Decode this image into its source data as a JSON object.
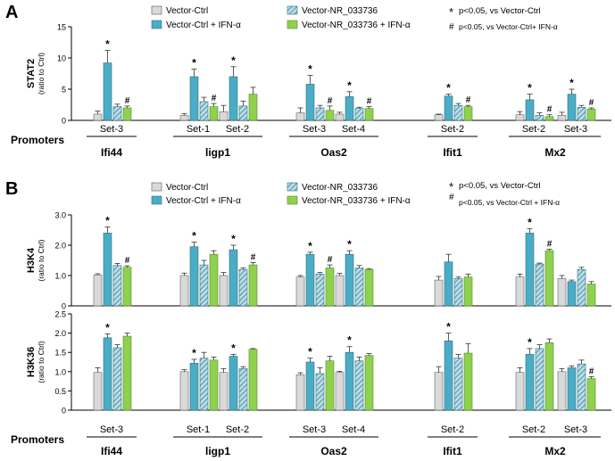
{
  "colors": {
    "vector_ctrl": "#d9d9d9",
    "vector_ctrl_ifn": "#4bacc6",
    "vector_nr": "#b7dee8",
    "vector_nr_ifn": "#8fd14f",
    "hatch": "#2e6f86",
    "error": "#333333"
  },
  "legend": {
    "vector_ctrl": "Vector-Ctrl",
    "vector_ctrl_ifn": "Vector-Ctrl + IFN-α",
    "vector_nr": "Vector-NR_033736",
    "vector_nr_ifn": "Vector-NR_033736 + IFN-α",
    "sig_star_symbol": "*",
    "sig_star_text": "p<0.05, vs Vector-Ctrl",
    "sig_hash_symbol": "#",
    "sig_hash_text": "p<0.05, vs Vector-Ctrl+ IFN-α",
    "sig_hash_text_b": "p<0.05, vs Vector-Ctrl + IFN-α"
  },
  "promoters_label": "Promoters",
  "chart_data": [
    {
      "panel": "A",
      "type": "bar",
      "ylabel": "STAT2",
      "ylabel_sub": "(ratio to Ctrl)",
      "ylim": [
        0,
        15
      ],
      "yticks": [
        "0",
        "5",
        "10",
        "15"
      ],
      "series": [
        "Vector-Ctrl",
        "Vector-Ctrl + IFN-α",
        "Vector-NR_033736",
        "Vector-NR_033736 + IFN-α"
      ],
      "genes": [
        {
          "name": "Ifi44",
          "sets": [
            {
              "label": "Set-3",
              "values": [
                1.0,
                9.2,
                2.2,
                2.0
              ],
              "errors": [
                0.5,
                2.0,
                0.4,
                0.3
              ],
              "marks": [
                "",
                "*",
                "",
                "#"
              ]
            }
          ]
        },
        {
          "name": "ligp1",
          "sets": [
            {
              "label": "Set-1",
              "values": [
                0.8,
                7.0,
                3.0,
                2.2
              ],
              "errors": [
                0.3,
                1.2,
                0.7,
                0.5
              ],
              "marks": [
                "",
                "*",
                "",
                "#"
              ]
            },
            {
              "label": "Set-2",
              "values": [
                1.4,
                7.0,
                2.3,
                4.2
              ],
              "errors": [
                1.0,
                1.6,
                0.8,
                1.1
              ],
              "marks": [
                "",
                "*",
                "",
                ""
              ]
            }
          ]
        },
        {
          "name": "Oas2",
          "sets": [
            {
              "label": "Set-3",
              "values": [
                1.2,
                5.8,
                2.0,
                1.6
              ],
              "errors": [
                0.8,
                1.4,
                0.4,
                0.7
              ],
              "marks": [
                "",
                "*",
                "",
                "#"
              ]
            },
            {
              "label": "Set-4",
              "values": [
                1.0,
                3.8,
                1.9,
                1.9
              ],
              "errors": [
                0.3,
                0.8,
                0.2,
                0.3
              ],
              "marks": [
                "",
                "*",
                "",
                "#"
              ]
            }
          ]
        },
        {
          "name": "Ifit1",
          "sets": [
            {
              "label": "Set-2",
              "values": [
                0.9,
                3.9,
                2.4,
                2.2
              ],
              "errors": [
                0.1,
                0.3,
                0.3,
                0.2
              ],
              "marks": [
                "",
                "*",
                "",
                "#"
              ]
            }
          ]
        },
        {
          "name": "Mx2",
          "sets": [
            {
              "label": "Set-2",
              "values": [
                0.9,
                3.3,
                0.8,
                0.6
              ],
              "errors": [
                0.5,
                0.9,
                0.4,
                0.3
              ],
              "marks": [
                "",
                "*",
                "",
                "#"
              ]
            },
            {
              "label": "Set-3",
              "values": [
                0.8,
                4.2,
                2.1,
                1.8
              ],
              "errors": [
                0.5,
                0.8,
                0.3,
                0.2
              ],
              "marks": [
                "",
                "*",
                "",
                "#"
              ]
            }
          ]
        }
      ]
    },
    {
      "panel": "B-top",
      "type": "bar",
      "ylabel": "H3K4",
      "ylabel_sub": "(ratio to Ctrl)",
      "ylim": [
        0,
        3
      ],
      "yticks": [
        "0",
        "1.0",
        "2.0",
        "3.0"
      ],
      "series": [
        "Vector-Ctrl",
        "Vector-Ctrl + IFN-α",
        "Vector-NR_033736",
        "Vector-NR_033736 + IFN-α"
      ],
      "genes": [
        {
          "name": "Ifi44",
          "sets": [
            {
              "label": "Set-3",
              "values": [
                1.02,
                2.4,
                1.33,
                1.27
              ],
              "errors": [
                0.04,
                0.2,
                0.07,
                0.05
              ],
              "marks": [
                "",
                "*",
                "",
                "#"
              ]
            }
          ]
        },
        {
          "name": "ligp1",
          "sets": [
            {
              "label": "Set-1",
              "values": [
                1.0,
                1.95,
                1.35,
                1.7
              ],
              "errors": [
                0.08,
                0.15,
                0.15,
                0.12
              ],
              "marks": [
                "",
                "*",
                "",
                ""
              ]
            },
            {
              "label": "Set-2",
              "values": [
                1.0,
                1.85,
                1.2,
                1.35
              ],
              "errors": [
                0.1,
                0.15,
                0.05,
                0.08
              ],
              "marks": [
                "",
                "*",
                "",
                "#"
              ]
            }
          ]
        },
        {
          "name": "Oas2",
          "sets": [
            {
              "label": "Set-3",
              "values": [
                0.95,
                1.7,
                1.05,
                1.25
              ],
              "errors": [
                0.05,
                0.07,
                0.05,
                0.1
              ],
              "marks": [
                "",
                "*",
                "",
                "#"
              ]
            },
            {
              "label": "Set-4",
              "values": [
                1.0,
                1.7,
                1.25,
                1.2
              ],
              "errors": [
                0.07,
                0.12,
                0.08,
                0.03
              ],
              "marks": [
                "",
                "*",
                "",
                ""
              ]
            }
          ]
        },
        {
          "name": "Ifit1",
          "sets": [
            {
              "label": "Set-2",
              "values": [
                0.85,
                1.45,
                0.9,
                0.95
              ],
              "errors": [
                0.12,
                0.25,
                0.05,
                0.1
              ],
              "marks": [
                "",
                "",
                "",
                ""
              ]
            }
          ]
        },
        {
          "name": "Mx2",
          "sets": [
            {
              "label": "Set-2",
              "values": [
                0.95,
                2.4,
                1.38,
                1.82
              ],
              "errors": [
                0.1,
                0.15,
                0.03,
                0.05
              ],
              "marks": [
                "",
                "*",
                "",
                "#"
              ]
            },
            {
              "label": "Set-3",
              "values": [
                0.9,
                0.8,
                1.2,
                0.72
              ],
              "errors": [
                0.1,
                0.05,
                0.07,
                0.08
              ],
              "marks": [
                "",
                "",
                "",
                ""
              ]
            }
          ]
        }
      ]
    },
    {
      "panel": "B-bottom",
      "type": "bar",
      "ylabel": "H3K36",
      "ylabel_sub": "(ratio to Ctrl)",
      "ylim": [
        0,
        2.5
      ],
      "yticks": [
        "0",
        "0.5",
        "1.0",
        "1.5",
        "2.0",
        "2.5"
      ],
      "series": [
        "Vector-Ctrl",
        "Vector-Ctrl + IFN-α",
        "Vector-NR_033736",
        "Vector-NR_033736 + IFN-α"
      ],
      "genes": [
        {
          "name": "Ifi44",
          "sets": [
            {
              "label": "Set-3",
              "values": [
                0.98,
                1.88,
                1.62,
                1.92
              ],
              "errors": [
                0.12,
                0.1,
                0.08,
                0.08
              ],
              "marks": [
                "",
                "*",
                "",
                ""
              ]
            }
          ]
        },
        {
          "name": "ligp1",
          "sets": [
            {
              "label": "Set-1",
              "values": [
                1.0,
                1.22,
                1.35,
                1.3
              ],
              "errors": [
                0.05,
                0.1,
                0.15,
                0.08
              ],
              "marks": [
                "",
                "*",
                "",
                ""
              ]
            },
            {
              "label": "Set-2",
              "values": [
                0.98,
                1.4,
                1.08,
                1.58
              ],
              "errors": [
                0.1,
                0.05,
                0.05,
                0.02
              ],
              "marks": [
                "",
                "*",
                "",
                ""
              ]
            }
          ]
        },
        {
          "name": "Oas2",
          "sets": [
            {
              "label": "Set-3",
              "values": [
                0.92,
                1.25,
                0.95,
                1.28
              ],
              "errors": [
                0.05,
                0.1,
                0.15,
                0.12
              ],
              "marks": [
                "",
                "*",
                "",
                ""
              ]
            },
            {
              "label": "Set-4",
              "values": [
                0.98,
                1.5,
                1.28,
                1.42
              ],
              "errors": [
                0.03,
                0.15,
                0.1,
                0.05
              ],
              "marks": [
                "",
                "*",
                "",
                ""
              ]
            }
          ]
        },
        {
          "name": "Ifit1",
          "sets": [
            {
              "label": "Set-2",
              "values": [
                0.98,
                1.8,
                1.35,
                1.48
              ],
              "errors": [
                0.15,
                0.2,
                0.1,
                0.25
              ],
              "marks": [
                "",
                "*",
                "",
                ""
              ]
            }
          ]
        },
        {
          "name": "Mx2",
          "sets": [
            {
              "label": "Set-2",
              "values": [
                0.98,
                1.45,
                1.6,
                1.75
              ],
              "errors": [
                0.12,
                0.15,
                0.1,
                0.1
              ],
              "marks": [
                "",
                "*",
                "",
                ""
              ]
            },
            {
              "label": "Set-3",
              "values": [
                1.0,
                1.1,
                1.2,
                0.82
              ],
              "errors": [
                0.08,
                0.05,
                0.1,
                0.05
              ],
              "marks": [
                "",
                "",
                "",
                "#"
              ]
            }
          ]
        }
      ]
    }
  ],
  "panel_labels": [
    "A",
    "B"
  ]
}
